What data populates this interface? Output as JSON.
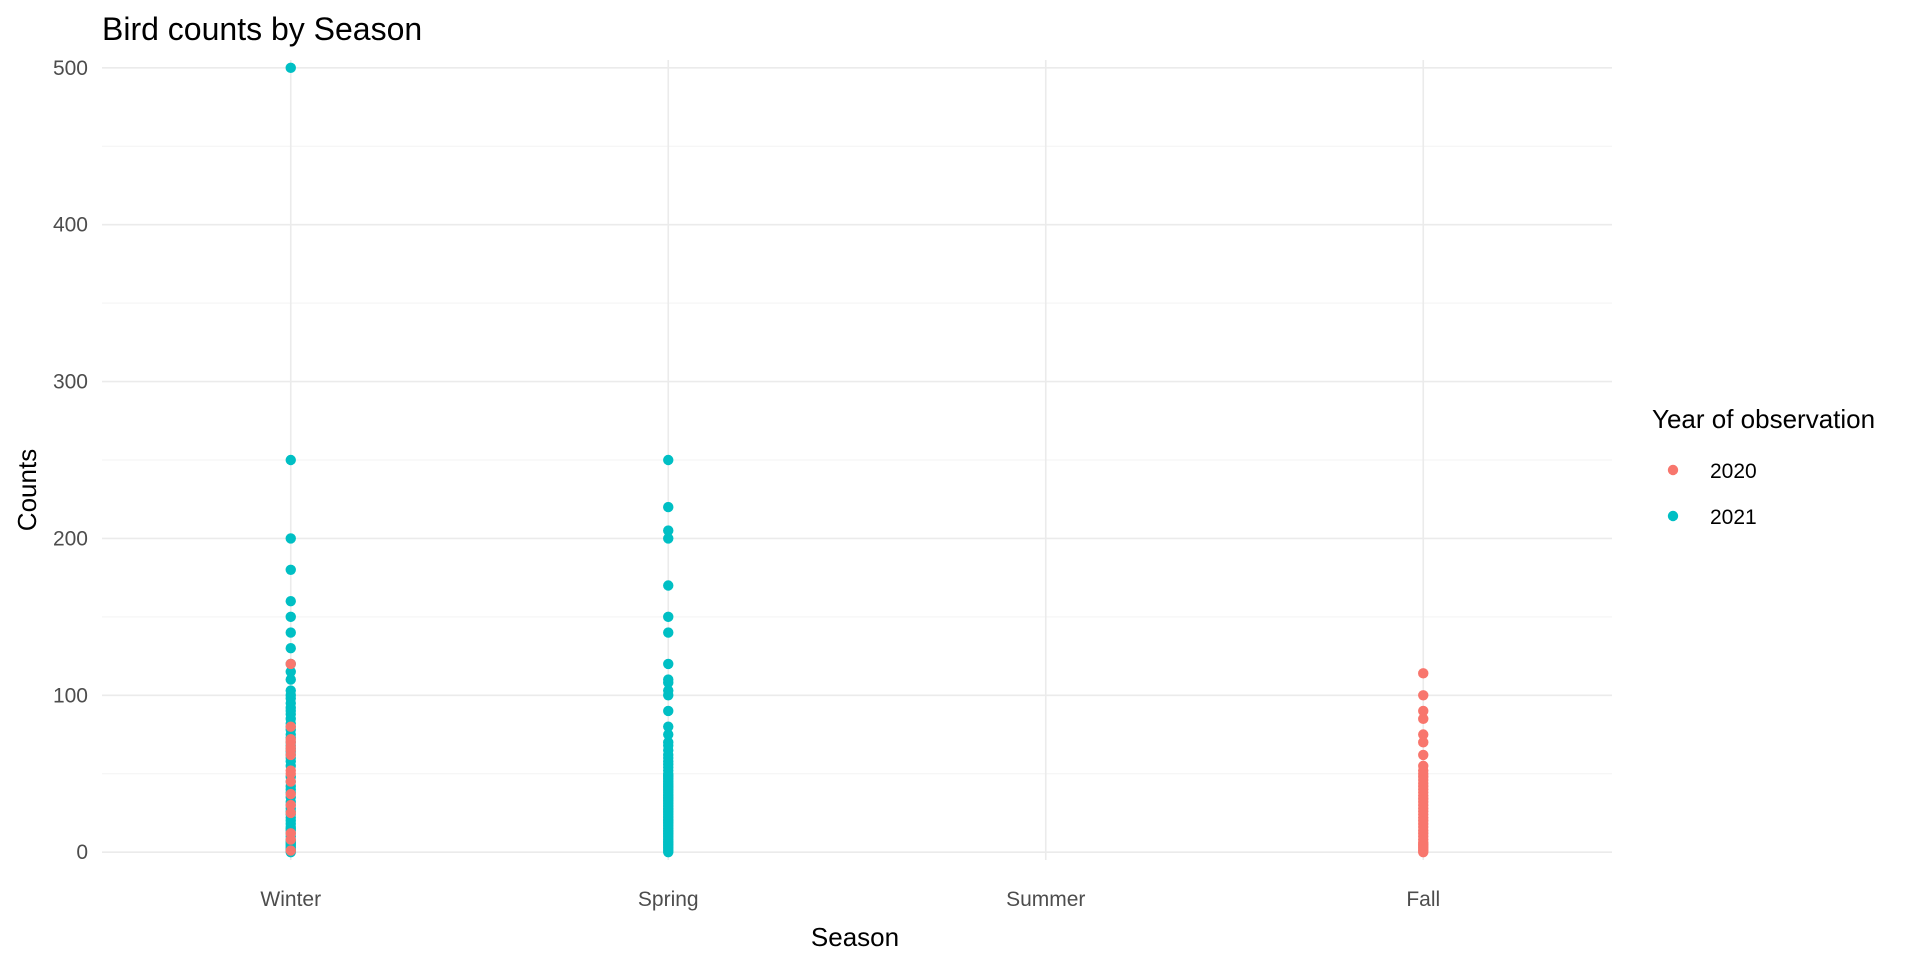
{
  "chart_data": {
    "type": "scatter",
    "title": "Bird counts by Season",
    "xlabel": "Season",
    "ylabel": "Counts",
    "categories": [
      "Winter",
      "Spring",
      "Summer",
      "Fall"
    ],
    "ylim": [
      -5,
      505
    ],
    "yticks": [
      0,
      100,
      200,
      300,
      400,
      500
    ],
    "grid": true,
    "legend": {
      "title": "Year of observation",
      "position": "right"
    },
    "series": [
      {
        "name": "2020",
        "color": "#F8766D",
        "points": [
          {
            "x": "Winter",
            "values": [
              1,
              8,
              12,
              25,
              30,
              37,
              45,
              50,
              52,
              62,
              65,
              67,
              70,
              72,
              80,
              120
            ]
          },
          {
            "x": "Fall",
            "values": [
              0,
              1,
              2,
              3,
              4,
              5,
              6,
              8,
              10,
              12,
              14,
              16,
              18,
              20,
              22,
              24,
              26,
              28,
              30,
              32,
              34,
              36,
              38,
              40,
              42,
              44,
              46,
              48,
              50,
              52,
              55,
              62,
              70,
              75,
              85,
              90,
              100,
              114
            ]
          }
        ]
      },
      {
        "name": "2021",
        "color": "#00BFC4",
        "points": [
          {
            "x": "Winter",
            "values": [
              0,
              1,
              2,
              3,
              4,
              5,
              6,
              7,
              8,
              10,
              12,
              14,
              15,
              16,
              18,
              20,
              22,
              24,
              26,
              28,
              30,
              32,
              35,
              38,
              40,
              42,
              45,
              48,
              55,
              58,
              60,
              62,
              64,
              66,
              68,
              70,
              73,
              75,
              78,
              80,
              82,
              85,
              88,
              90,
              92,
              95,
              98,
              100,
              103,
              110,
              115,
              120,
              130,
              140,
              150,
              160,
              180,
              200,
              250,
              500
            ]
          },
          {
            "x": "Spring",
            "values": [
              0,
              1,
              2,
              3,
              4,
              5,
              6,
              7,
              8,
              9,
              10,
              11,
              12,
              13,
              14,
              15,
              16,
              17,
              18,
              19,
              20,
              21,
              22,
              23,
              24,
              25,
              26,
              27,
              28,
              29,
              30,
              31,
              32,
              33,
              34,
              35,
              36,
              37,
              38,
              39,
              40,
              41,
              42,
              43,
              44,
              45,
              46,
              47,
              48,
              49,
              50,
              52,
              54,
              56,
              58,
              60,
              62,
              65,
              68,
              70,
              75,
              80,
              90,
              100,
              103,
              108,
              110,
              120,
              140,
              150,
              170,
              200,
              205,
              220,
              250
            ]
          }
        ]
      }
    ]
  }
}
